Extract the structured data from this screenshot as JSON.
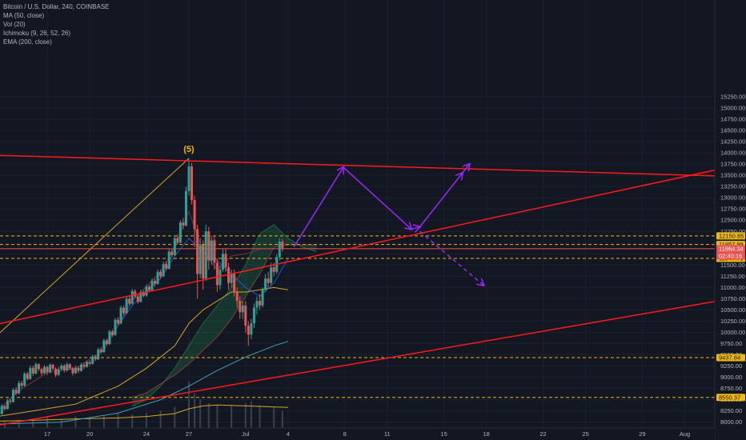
{
  "legend": {
    "symbol": "Bitcoin / U.S. Dollar, 240, COINBASE",
    "ma": "MA (50, close)",
    "vol": "Vol (20)",
    "ichimoku": "Ichimoku (9, 26, 52, 26)",
    "ema": "EMA (200, close)"
  },
  "wave_label": "(5)",
  "colors": {
    "background": "#131722",
    "up": "#26a69a",
    "down": "#ef5350",
    "trendline": "#ff1a1a",
    "projection": "#9c27ff",
    "level_line": "#f0b90b",
    "last_price_bg": "#ef5350",
    "ma": "#d9a420",
    "ema": "#3aa2c0"
  },
  "chart_data": {
    "type": "candlestick",
    "title": "Bitcoin / U.S. Dollar, 240, COINBASE",
    "ylim": [
      8000,
      15500
    ],
    "y_ticks": [
      8000,
      8250,
      8500,
      8750,
      9000,
      9250,
      9500,
      9750,
      10000,
      10250,
      10500,
      10750,
      11000,
      11250,
      11500,
      11750,
      12000,
      12250,
      12500,
      12750,
      13000,
      13250,
      13500,
      13750,
      14000,
      14250,
      14500,
      14750,
      15000,
      15250
    ],
    "y_tick_labels": [
      "8000.00",
      "8250.00",
      "8500.00",
      "8750.00",
      "9000.00",
      "9250.00",
      "9500.00",
      "9750.00",
      "10000.00",
      "10250.00",
      "10500.00",
      "10750.00",
      "11000.00",
      "11250.00",
      "11500.00",
      "11750.00",
      "12000.00",
      "12250.00",
      "12500.00",
      "12750.00",
      "13000.00",
      "13250.00",
      "13500.00",
      "13750.00",
      "14000.00",
      "14250.00",
      "14500.00",
      "14750.00",
      "15000.00",
      "15250.00"
    ],
    "x_ticks": [
      {
        "label": "17",
        "day": 17
      },
      {
        "label": "20",
        "day": 20
      },
      {
        "label": "24",
        "day": 24
      },
      {
        "label": "27",
        "day": 27
      },
      {
        "label": "Jul",
        "day": 31
      },
      {
        "label": "4",
        "day": 34
      },
      {
        "label": "8",
        "day": 38
      },
      {
        "label": "11",
        "day": 41
      },
      {
        "label": "15",
        "day": 45
      },
      {
        "label": "18",
        "day": 48
      },
      {
        "label": "22",
        "day": 52
      },
      {
        "label": "25",
        "day": 55
      },
      {
        "label": "29",
        "day": 59
      },
      {
        "label": "Aug",
        "day": 62
      }
    ],
    "price_levels": [
      {
        "label": "12150.85",
        "value": 12150.85
      },
      {
        "label": "11957.99",
        "value": 11957.99
      },
      {
        "label": "11647.71",
        "value": 11647.71
      },
      {
        "label": "9437.84",
        "value": 9437.84
      },
      {
        "label": "8550.37",
        "value": 8550.37
      }
    ],
    "last_price": {
      "label": "11864.34",
      "value": 11864.34,
      "countdown": "02:40:16"
    },
    "wave_peak": {
      "day": 27,
      "value": 13880
    },
    "trendlines": [
      {
        "name": "resistance",
        "from": {
          "day": 13,
          "value": 13950
        },
        "to": {
          "day": 66,
          "value": 13470
        }
      },
      {
        "name": "support-upper",
        "from": {
          "day": 13,
          "value": 10150
        },
        "to": {
          "day": 63,
          "value": 13540
        }
      },
      {
        "name": "support-lower",
        "from": {
          "day": 13,
          "value": 7900
        },
        "to": {
          "day": 66,
          "value": 10790
        }
      }
    ],
    "projection_bull": [
      {
        "day": 34.4,
        "value": 11900
      },
      {
        "day": 37.9,
        "value": 13680
      },
      {
        "day": 42.7,
        "value": 12300
      },
      {
        "day": 43.3,
        "value": 12350
      },
      {
        "day": 46.3,
        "value": 13550
      },
      {
        "day": 46.8,
        "value": 13750
      },
      {
        "day": 50.6,
        "value": 14400
      }
    ],
    "projection_bear": [
      {
        "day": 43.3,
        "value": 12250
      },
      {
        "day": 47.8,
        "value": 11050
      }
    ],
    "ichimoku_future": [
      {
        "day": 33.5,
        "value": 11950
      },
      {
        "day": 34.5,
        "value": 11800
      },
      {
        "day": 35.5,
        "value": 11500
      },
      {
        "day": 36.5,
        "value": 11200
      },
      {
        "day": 37.5,
        "value": 10950
      },
      {
        "day": 38.5,
        "value": 11200
      }
    ],
    "candles": [
      [
        13,
        8000,
        8130,
        7980,
        8150
      ],
      [
        13.2,
        8130,
        8060,
        8020,
        8200
      ],
      [
        13.4,
        8060,
        8230,
        8040,
        8260
      ],
      [
        13.6,
        8230,
        8180,
        8140,
        8270
      ],
      [
        13.8,
        8180,
        8360,
        8170,
        8400
      ],
      [
        14,
        8360,
        8290,
        8260,
        8380
      ],
      [
        14.2,
        8290,
        8480,
        8280,
        8520
      ],
      [
        14.4,
        8480,
        8450,
        8400,
        8530
      ],
      [
        14.6,
        8450,
        8720,
        8430,
        8760
      ],
      [
        14.8,
        8720,
        8640,
        8600,
        8780
      ],
      [
        15,
        8640,
        8870,
        8620,
        8920
      ],
      [
        15.2,
        8870,
        8810,
        8760,
        8920
      ],
      [
        15.4,
        8810,
        9080,
        8790,
        9120
      ],
      [
        15.6,
        9080,
        8960,
        8930,
        9120
      ],
      [
        15.8,
        8960,
        9210,
        8940,
        9260
      ],
      [
        16,
        9210,
        9080,
        9030,
        9260
      ],
      [
        16.2,
        9080,
        9290,
        9060,
        9330
      ],
      [
        16.4,
        9290,
        9180,
        9140,
        9310
      ],
      [
        16.6,
        9180,
        9090,
        9040,
        9210
      ],
      [
        16.8,
        9090,
        9230,
        9070,
        9270
      ],
      [
        17,
        9230,
        9110,
        9050,
        9260
      ],
      [
        17.2,
        9110,
        9280,
        9090,
        9310
      ],
      [
        17.4,
        9280,
        9190,
        9150,
        9300
      ],
      [
        17.6,
        9190,
        9050,
        9000,
        9220
      ],
      [
        17.8,
        9050,
        9180,
        9030,
        9230
      ],
      [
        18,
        9180,
        9260,
        9150,
        9300
      ],
      [
        18.2,
        9260,
        9150,
        9100,
        9290
      ],
      [
        18.4,
        9150,
        9290,
        9120,
        9330
      ],
      [
        18.6,
        9290,
        9200,
        9160,
        9310
      ],
      [
        18.8,
        9200,
        9090,
        9040,
        9230
      ],
      [
        19,
        9090,
        9210,
        9070,
        9260
      ],
      [
        19.2,
        9210,
        9140,
        9090,
        9250
      ],
      [
        19.4,
        9140,
        9280,
        9120,
        9320
      ],
      [
        19.6,
        9280,
        9230,
        9180,
        9330
      ],
      [
        19.8,
        9230,
        9340,
        9210,
        9370
      ],
      [
        20,
        9340,
        9300,
        9260,
        9380
      ],
      [
        20.2,
        9300,
        9460,
        9280,
        9500
      ],
      [
        20.4,
        9460,
        9400,
        9360,
        9500
      ],
      [
        20.6,
        9400,
        9620,
        9380,
        9660
      ],
      [
        20.8,
        9620,
        9560,
        9520,
        9670
      ],
      [
        21,
        9560,
        9820,
        9540,
        9860
      ],
      [
        21.2,
        9820,
        9740,
        9700,
        9860
      ],
      [
        21.4,
        9740,
        10020,
        9720,
        10060
      ],
      [
        21.6,
        10020,
        9940,
        9900,
        10070
      ],
      [
        21.8,
        9940,
        10280,
        9920,
        10320
      ],
      [
        22,
        10280,
        10200,
        10160,
        10340
      ],
      [
        22.2,
        10200,
        10550,
        10180,
        10600
      ],
      [
        22.4,
        10550,
        10430,
        10380,
        10600
      ],
      [
        22.6,
        10430,
        10750,
        10410,
        10800
      ],
      [
        22.8,
        10750,
        10640,
        10600,
        10800
      ],
      [
        23,
        10640,
        10920,
        10620,
        10970
      ],
      [
        23.2,
        10920,
        10800,
        10760,
        10960
      ],
      [
        23.4,
        10800,
        10680,
        10640,
        10840
      ],
      [
        23.6,
        10680,
        10900,
        10660,
        10950
      ],
      [
        23.8,
        10900,
        10820,
        10780,
        10940
      ],
      [
        24,
        10820,
        11020,
        10790,
        11060
      ],
      [
        24.2,
        11020,
        10940,
        10900,
        11060
      ],
      [
        24.4,
        10940,
        11150,
        10920,
        11200
      ],
      [
        24.6,
        11150,
        11080,
        11020,
        11200
      ],
      [
        24.8,
        11080,
        11350,
        11060,
        11400
      ],
      [
        25,
        11350,
        11250,
        11200,
        11400
      ],
      [
        25.2,
        11250,
        11520,
        11230,
        11580
      ],
      [
        25.4,
        11520,
        11420,
        11380,
        11580
      ],
      [
        25.6,
        11420,
        11800,
        11400,
        11860
      ],
      [
        25.8,
        11800,
        11720,
        11660,
        11850
      ],
      [
        26,
        11720,
        12100,
        11700,
        12150
      ],
      [
        26.2,
        12100,
        12000,
        11960,
        12180
      ],
      [
        26.4,
        12000,
        12450,
        11980,
        12500
      ],
      [
        26.6,
        12450,
        12380,
        12300,
        12550
      ],
      [
        26.8,
        12380,
        13150,
        12360,
        13250
      ],
      [
        27,
        13150,
        13700,
        13050,
        13880
      ],
      [
        27.2,
        13700,
        12950,
        12850,
        13780
      ],
      [
        27.4,
        12950,
        12300,
        11900,
        13050
      ],
      [
        27.6,
        12300,
        11300,
        10750,
        12400
      ],
      [
        27.8,
        11300,
        11950,
        11200,
        12100
      ],
      [
        28,
        11950,
        11200,
        10950,
        12050
      ],
      [
        28.2,
        11200,
        12250,
        11150,
        12400
      ],
      [
        28.4,
        12250,
        11600,
        11400,
        12350
      ],
      [
        28.6,
        11600,
        12050,
        11500,
        12150
      ],
      [
        28.8,
        12050,
        11550,
        11400,
        12150
      ],
      [
        29,
        11550,
        11050,
        10900,
        11650
      ],
      [
        29.2,
        11050,
        11400,
        10950,
        11500
      ],
      [
        29.4,
        11400,
        11750,
        11350,
        11850
      ],
      [
        29.6,
        11750,
        11450,
        11350,
        11850
      ],
      [
        29.8,
        11450,
        11100,
        10950,
        11550
      ],
      [
        30,
        11100,
        11300,
        11000,
        11400
      ],
      [
        30.2,
        11300,
        10900,
        10800,
        11400
      ],
      [
        30.4,
        10900,
        10700,
        10550,
        11000
      ],
      [
        30.6,
        10700,
        10450,
        10300,
        10800
      ],
      [
        30.8,
        10450,
        10600,
        10300,
        10700
      ],
      [
        31,
        10600,
        10150,
        10000,
        10700
      ],
      [
        31.2,
        10150,
        9950,
        9700,
        10250
      ],
      [
        31.4,
        9950,
        10200,
        9850,
        10300
      ],
      [
        31.6,
        10200,
        10550,
        10100,
        10650
      ],
      [
        31.8,
        10550,
        10700,
        10400,
        10800
      ],
      [
        32,
        10700,
        10600,
        10500,
        10850
      ],
      [
        32.2,
        10600,
        10950,
        10550,
        11000
      ],
      [
        32.4,
        10950,
        11200,
        10900,
        11300
      ],
      [
        32.6,
        11200,
        11100,
        11000,
        11350
      ],
      [
        32.8,
        11100,
        11450,
        11050,
        11550
      ],
      [
        33,
        11450,
        11350,
        11250,
        11550
      ],
      [
        33.2,
        11350,
        11680,
        11300,
        11750
      ],
      [
        33.4,
        11680,
        12020,
        11600,
        12100
      ],
      [
        33.6,
        12020,
        11864,
        11800,
        12080
      ]
    ],
    "ichimoku_cloud": {
      "leading_a": [
        [
          23,
          8350
        ],
        [
          24,
          8500
        ],
        [
          25,
          8800
        ],
        [
          26,
          9200
        ],
        [
          27,
          9700
        ],
        [
          28,
          10200
        ],
        [
          29,
          10600
        ],
        [
          30,
          11000
        ],
        [
          31,
          11500
        ],
        [
          32,
          12200
        ],
        [
          33,
          12400
        ],
        [
          34,
          12100
        ],
        [
          35,
          11900
        ],
        [
          36,
          11800
        ]
      ],
      "leading_b": [
        [
          23,
          8550
        ],
        [
          24,
          8650
        ],
        [
          25,
          8850
        ],
        [
          26,
          9050
        ],
        [
          27,
          9300
        ],
        [
          28,
          9600
        ],
        [
          29,
          9900
        ],
        [
          30,
          10300
        ],
        [
          31,
          10800
        ],
        [
          32,
          11300
        ],
        [
          33,
          11900
        ],
        [
          34,
          11950
        ],
        [
          35,
          11950
        ],
        [
          36,
          11950
        ]
      ]
    },
    "ma_line": [
      [
        13,
        8100
      ],
      [
        16,
        8250
      ],
      [
        19,
        8400
      ],
      [
        22,
        8800
      ],
      [
        24,
        9200
      ],
      [
        26,
        9700
      ],
      [
        27,
        10200
      ],
      [
        28,
        10500
      ],
      [
        29,
        10700
      ],
      [
        30,
        10900
      ],
      [
        31,
        10900
      ],
      [
        32,
        10950
      ],
      [
        33,
        11000
      ],
      [
        34,
        10950
      ]
    ],
    "ema_line": [
      [
        13,
        7950
      ],
      [
        18,
        8000
      ],
      [
        22,
        8200
      ],
      [
        25,
        8500
      ],
      [
        27,
        8800
      ],
      [
        29,
        9150
      ],
      [
        31,
        9450
      ],
      [
        33,
        9700
      ],
      [
        34,
        9800
      ]
    ],
    "tenkan_line": [
      [
        21,
        9700
      ],
      [
        23,
        10600
      ],
      [
        25,
        11200
      ],
      [
        26,
        11700
      ],
      [
        27,
        12100
      ],
      [
        28,
        11800
      ],
      [
        29,
        11600
      ],
      [
        30,
        11300
      ],
      [
        31,
        11000
      ],
      [
        32,
        10800
      ],
      [
        33,
        11100
      ],
      [
        34,
        11650
      ]
    ],
    "lagging_line": [
      [
        13,
        8100
      ],
      [
        15,
        8700
      ],
      [
        17,
        9100
      ],
      [
        19,
        9200
      ],
      [
        21,
        9600
      ],
      [
        23,
        10700
      ],
      [
        25,
        11350
      ],
      [
        26,
        11900
      ],
      [
        27,
        12700
      ],
      [
        28,
        11800
      ],
      [
        29,
        11400
      ],
      [
        30,
        11700
      ],
      [
        31,
        11750
      ],
      [
        32,
        11850
      ]
    ],
    "volume": [
      [
        13,
        60
      ],
      [
        14,
        80
      ],
      [
        15,
        70
      ],
      [
        16,
        90
      ],
      [
        17,
        110
      ],
      [
        18,
        95
      ],
      [
        19,
        120
      ],
      [
        20,
        100
      ],
      [
        21,
        130
      ],
      [
        22,
        150
      ],
      [
        23,
        140
      ],
      [
        24,
        160
      ],
      [
        25,
        180
      ],
      [
        26,
        220
      ],
      [
        27,
        480
      ],
      [
        27.4,
        360
      ],
      [
        27.8,
        300
      ],
      [
        28.4,
        260
      ],
      [
        29,
        240
      ],
      [
        30,
        230
      ],
      [
        31,
        260
      ],
      [
        31.4,
        280
      ],
      [
        32,
        240
      ],
      [
        33,
        220
      ],
      [
        33.6,
        180
      ]
    ],
    "volume_ma": [
      [
        13,
        70
      ],
      [
        16,
        80
      ],
      [
        19,
        95
      ],
      [
        22,
        105
      ],
      [
        24,
        120
      ],
      [
        26,
        150
      ],
      [
        27,
        200
      ],
      [
        28,
        230
      ],
      [
        29,
        240
      ],
      [
        30,
        235
      ],
      [
        31,
        230
      ],
      [
        32,
        225
      ],
      [
        33,
        220
      ],
      [
        34,
        215
      ]
    ]
  }
}
